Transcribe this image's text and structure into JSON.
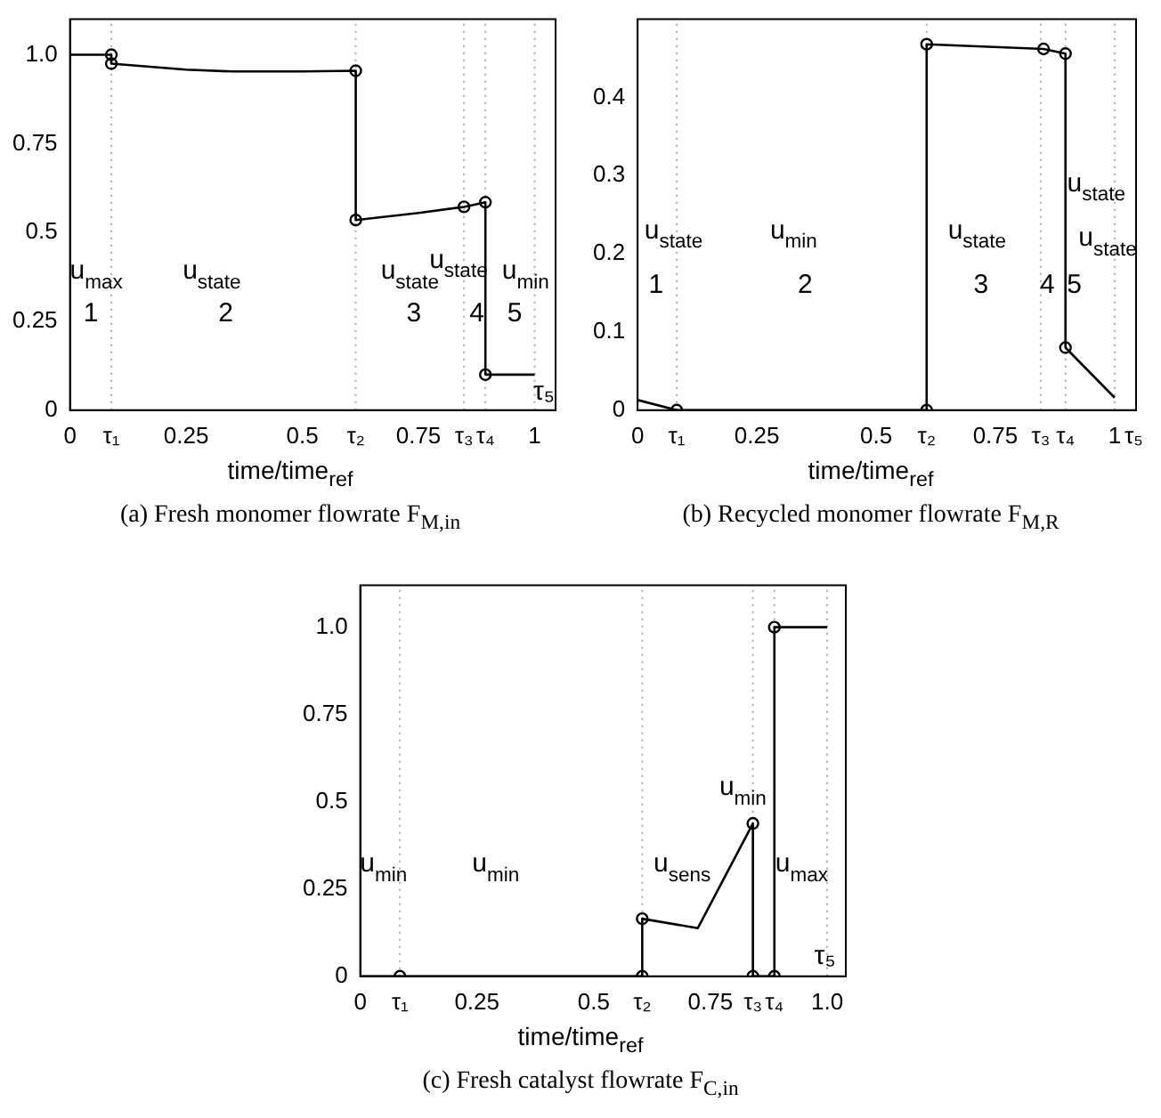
{
  "chart_data": [
    {
      "type": "line",
      "title": "(a) Fresh monomer flowrate F$_{M,in}$",
      "xlabel": "time/time$_{ref}$",
      "xlim": [
        0,
        1.045
      ],
      "ylim": [
        0,
        1.1
      ],
      "xticks": [
        0,
        {
          "value": 0.089,
          "label": "τ₁"
        },
        0.25,
        0.5,
        {
          "value": 0.615,
          "label": "τ₂"
        },
        0.75,
        {
          "value": 0.848,
          "label": "τ₃"
        },
        {
          "value": 0.894,
          "label": "τ₄"
        },
        1
      ],
      "yticks": [
        0,
        0.25,
        0.5,
        0.75,
        {
          "value": 1,
          "label": "1.0"
        }
      ],
      "series": [
        {
          "type": "line",
          "color": "#000000",
          "marker": "none",
          "x": [
            0,
            0.089,
            0.089,
            0.25,
            0.35,
            0.5,
            0.615,
            0.615,
            0.75,
            0.848,
            0.894,
            0.894,
            1.0
          ],
          "values": [
            1.0,
            1.0,
            0.975,
            0.958,
            0.953,
            0.953,
            0.955,
            0.535,
            0.555,
            0.572,
            0.585,
            0.1,
            0.1
          ]
        },
        {
          "type": "scatter",
          "color": "#000000",
          "marker": "circle",
          "x": [
            0.089,
            0.089,
            0.615,
            0.615,
            0.848,
            0.894,
            0.894
          ],
          "values": [
            1.0,
            0.975,
            0.955,
            0.535,
            0.572,
            0.585,
            0.1
          ]
        }
      ],
      "ref_lines": [
        {
          "axis": "x",
          "value": 0.089,
          "color": "#aaaaaa",
          "line_style": "dotted"
        },
        {
          "axis": "x",
          "value": 0.615,
          "color": "#aaaaaa",
          "line_style": "dotted"
        },
        {
          "axis": "x",
          "value": 0.848,
          "color": "#aaaaaa",
          "line_style": "dotted"
        },
        {
          "axis": "x",
          "value": 0.894,
          "color": "#aaaaaa",
          "line_style": "dotted"
        },
        {
          "axis": "x",
          "value": 1.0,
          "color": "#aaaaaa",
          "line_style": "dotted"
        }
      ],
      "annotations": [
        "u$_{max}$",
        "1",
        "u$_{state}$",
        "2",
        "u$_{state}$",
        "3",
        "u$_{state}$",
        "4",
        "u$_{min}$",
        "5",
        "τ₅"
      ],
      "grid": false,
      "legend": false
    },
    {
      "type": "line",
      "title": "(b) Recycled monomer flowrate F$_{M,R}$",
      "xlabel": "time/time$_{ref}$",
      "xlim": [
        0,
        1.045
      ],
      "ylim": [
        0,
        0.5
      ],
      "xticks": [
        0,
        {
          "value": 0.082,
          "label": "τ₁"
        },
        0.25,
        0.5,
        {
          "value": 0.606,
          "label": "τ₂"
        },
        0.75,
        {
          "value": 0.845,
          "label": "τ₃"
        },
        {
          "value": 0.897,
          "label": "τ₄"
        },
        1,
        {
          "value": 1.04,
          "label": "τ₅"
        }
      ],
      "yticks": [
        0,
        0.1,
        0.2,
        0.3,
        0.4
      ],
      "series": [
        {
          "type": "line",
          "color": "#000000",
          "marker": "none",
          "x": [
            0,
            0.082,
            0.606,
            0.606,
            0.851,
            0.897,
            0.897,
            1.0
          ],
          "values": [
            0.013,
            0,
            0,
            0.468,
            0.462,
            0.456,
            0.08,
            0.016
          ]
        },
        {
          "type": "scatter",
          "color": "#000000",
          "marker": "circle",
          "x": [
            0.082,
            0.606,
            0.606,
            0.851,
            0.897,
            0.897
          ],
          "values": [
            0,
            0,
            0.468,
            0.462,
            0.456,
            0.08
          ]
        }
      ],
      "ref_lines": [
        {
          "axis": "x",
          "value": 0.082,
          "color": "#aaaaaa",
          "line_style": "dotted"
        },
        {
          "axis": "x",
          "value": 0.606,
          "color": "#aaaaaa",
          "line_style": "dotted"
        },
        {
          "axis": "x",
          "value": 0.845,
          "color": "#aaaaaa",
          "line_style": "dotted"
        },
        {
          "axis": "x",
          "value": 0.897,
          "color": "#aaaaaa",
          "line_style": "dotted"
        },
        {
          "axis": "x",
          "value": 1.0,
          "color": "#aaaaaa",
          "line_style": "dotted"
        }
      ],
      "annotations": [
        "u$_{state}$",
        "1",
        "u$_{min}$",
        "2",
        "u$_{state}$",
        "3",
        "u$_{state}$",
        "4",
        "u$_{state}$",
        "5"
      ],
      "grid": false,
      "legend": false
    },
    {
      "type": "line",
      "title": "(c) Fresh catalyst flowrate F$_{C,in}$",
      "xlabel": "time/time$_{ref}$",
      "xlim": [
        0,
        1.04
      ],
      "ylim": [
        0,
        1.12
      ],
      "xticks": [
        0,
        {
          "value": 0.085,
          "label": "τ₁"
        },
        0.25,
        0.5,
        {
          "value": 0.604,
          "label": "τ₂"
        },
        0.75,
        {
          "value": 0.841,
          "label": "τ₃"
        },
        {
          "value": 0.887,
          "label": "τ₄"
        },
        {
          "value": 1,
          "label": "1.0"
        }
      ],
      "yticks": [
        0,
        0.25,
        0.5,
        0.75,
        {
          "value": 1,
          "label": "1.0"
        }
      ],
      "series": [
        {
          "type": "line",
          "color": "#000000",
          "marker": "none",
          "x": [
            0,
            0.085,
            0.604,
            0.604,
            0.723,
            0.841,
            0.841,
            0.887,
            0.887,
            1.0
          ],
          "values": [
            0,
            0,
            0,
            0.165,
            0.138,
            0.438,
            0,
            0,
            1.0,
            1.0
          ]
        },
        {
          "type": "scatter",
          "color": "#000000",
          "marker": "circle",
          "x": [
            0.085,
            0.604,
            0.604,
            0.841,
            0.841,
            0.887,
            0.887
          ],
          "values": [
            0,
            0,
            0.165,
            0.438,
            0,
            0,
            1.0
          ]
        }
      ],
      "ref_lines": [
        {
          "axis": "x",
          "value": 0.085,
          "color": "#aaaaaa",
          "line_style": "dotted"
        },
        {
          "axis": "x",
          "value": 0.604,
          "color": "#aaaaaa",
          "line_style": "dotted"
        },
        {
          "axis": "x",
          "value": 0.841,
          "color": "#aaaaaa",
          "line_style": "dotted"
        },
        {
          "axis": "x",
          "value": 0.887,
          "color": "#aaaaaa",
          "line_style": "dotted"
        },
        {
          "axis": "x",
          "value": 1.0,
          "color": "#aaaaaa",
          "line_style": "dotted"
        }
      ],
      "annotations": [
        "u$_{min}$",
        "u$_{min}$",
        "u$_{sens}$",
        "u$_{min}$",
        "u$_{max}$",
        "τ₅"
      ],
      "grid": false,
      "legend": false
    }
  ]
}
